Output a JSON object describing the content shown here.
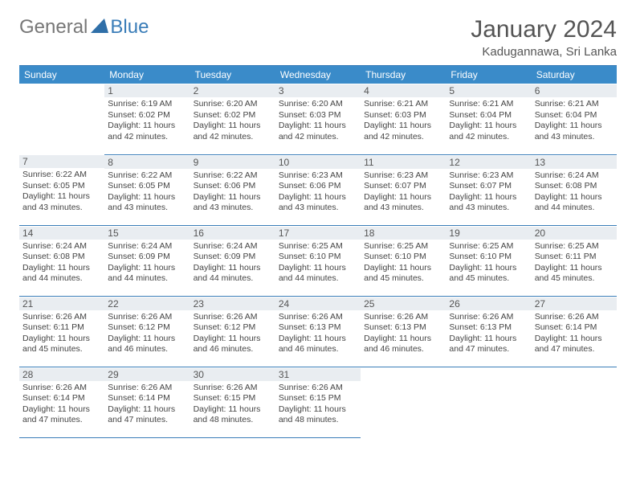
{
  "brand": {
    "part1": "General",
    "part2": "Blue"
  },
  "title": "January 2024",
  "location": "Kadugannawa, Sri Lanka",
  "colors": {
    "header_bg": "#3a8bc9",
    "header_text": "#ffffff",
    "rule": "#3a7db8",
    "daynum_bg": "#e9edf1",
    "text": "#444444",
    "brand_gray": "#777777",
    "brand_blue": "#3a7db8"
  },
  "weekdays": [
    "Sunday",
    "Monday",
    "Tuesday",
    "Wednesday",
    "Thursday",
    "Friday",
    "Saturday"
  ],
  "weeks": [
    [
      null,
      {
        "n": "1",
        "sr": "6:19 AM",
        "ss": "6:02 PM",
        "dl": "11 hours and 42 minutes."
      },
      {
        "n": "2",
        "sr": "6:20 AM",
        "ss": "6:02 PM",
        "dl": "11 hours and 42 minutes."
      },
      {
        "n": "3",
        "sr": "6:20 AM",
        "ss": "6:03 PM",
        "dl": "11 hours and 42 minutes."
      },
      {
        "n": "4",
        "sr": "6:21 AM",
        "ss": "6:03 PM",
        "dl": "11 hours and 42 minutes."
      },
      {
        "n": "5",
        "sr": "6:21 AM",
        "ss": "6:04 PM",
        "dl": "11 hours and 42 minutes."
      },
      {
        "n": "6",
        "sr": "6:21 AM",
        "ss": "6:04 PM",
        "dl": "11 hours and 43 minutes."
      }
    ],
    [
      {
        "n": "7",
        "sr": "6:22 AM",
        "ss": "6:05 PM",
        "dl": "11 hours and 43 minutes."
      },
      {
        "n": "8",
        "sr": "6:22 AM",
        "ss": "6:05 PM",
        "dl": "11 hours and 43 minutes."
      },
      {
        "n": "9",
        "sr": "6:22 AM",
        "ss": "6:06 PM",
        "dl": "11 hours and 43 minutes."
      },
      {
        "n": "10",
        "sr": "6:23 AM",
        "ss": "6:06 PM",
        "dl": "11 hours and 43 minutes."
      },
      {
        "n": "11",
        "sr": "6:23 AM",
        "ss": "6:07 PM",
        "dl": "11 hours and 43 minutes."
      },
      {
        "n": "12",
        "sr": "6:23 AM",
        "ss": "6:07 PM",
        "dl": "11 hours and 43 minutes."
      },
      {
        "n": "13",
        "sr": "6:24 AM",
        "ss": "6:08 PM",
        "dl": "11 hours and 44 minutes."
      }
    ],
    [
      {
        "n": "14",
        "sr": "6:24 AM",
        "ss": "6:08 PM",
        "dl": "11 hours and 44 minutes."
      },
      {
        "n": "15",
        "sr": "6:24 AM",
        "ss": "6:09 PM",
        "dl": "11 hours and 44 minutes."
      },
      {
        "n": "16",
        "sr": "6:24 AM",
        "ss": "6:09 PM",
        "dl": "11 hours and 44 minutes."
      },
      {
        "n": "17",
        "sr": "6:25 AM",
        "ss": "6:10 PM",
        "dl": "11 hours and 44 minutes."
      },
      {
        "n": "18",
        "sr": "6:25 AM",
        "ss": "6:10 PM",
        "dl": "11 hours and 45 minutes."
      },
      {
        "n": "19",
        "sr": "6:25 AM",
        "ss": "6:10 PM",
        "dl": "11 hours and 45 minutes."
      },
      {
        "n": "20",
        "sr": "6:25 AM",
        "ss": "6:11 PM",
        "dl": "11 hours and 45 minutes."
      }
    ],
    [
      {
        "n": "21",
        "sr": "6:26 AM",
        "ss": "6:11 PM",
        "dl": "11 hours and 45 minutes."
      },
      {
        "n": "22",
        "sr": "6:26 AM",
        "ss": "6:12 PM",
        "dl": "11 hours and 46 minutes."
      },
      {
        "n": "23",
        "sr": "6:26 AM",
        "ss": "6:12 PM",
        "dl": "11 hours and 46 minutes."
      },
      {
        "n": "24",
        "sr": "6:26 AM",
        "ss": "6:13 PM",
        "dl": "11 hours and 46 minutes."
      },
      {
        "n": "25",
        "sr": "6:26 AM",
        "ss": "6:13 PM",
        "dl": "11 hours and 46 minutes."
      },
      {
        "n": "26",
        "sr": "6:26 AM",
        "ss": "6:13 PM",
        "dl": "11 hours and 47 minutes."
      },
      {
        "n": "27",
        "sr": "6:26 AM",
        "ss": "6:14 PM",
        "dl": "11 hours and 47 minutes."
      }
    ],
    [
      {
        "n": "28",
        "sr": "6:26 AM",
        "ss": "6:14 PM",
        "dl": "11 hours and 47 minutes."
      },
      {
        "n": "29",
        "sr": "6:26 AM",
        "ss": "6:14 PM",
        "dl": "11 hours and 47 minutes."
      },
      {
        "n": "30",
        "sr": "6:26 AM",
        "ss": "6:15 PM",
        "dl": "11 hours and 48 minutes."
      },
      {
        "n": "31",
        "sr": "6:26 AM",
        "ss": "6:15 PM",
        "dl": "11 hours and 48 minutes."
      },
      null,
      null,
      null
    ]
  ],
  "labels": {
    "sunrise": "Sunrise:",
    "sunset": "Sunset:",
    "daylight": "Daylight:"
  }
}
